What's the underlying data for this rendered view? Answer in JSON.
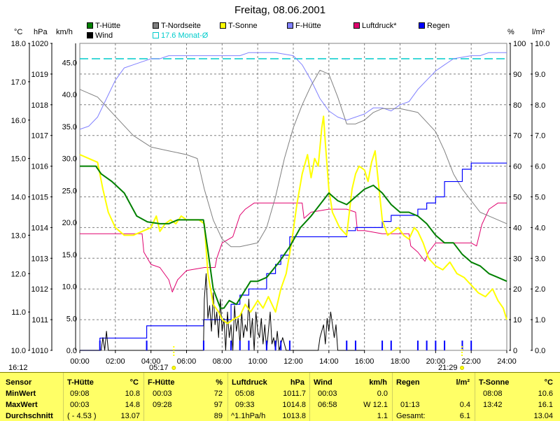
{
  "title": "Freitag, 08.06.2001",
  "units": {
    "celsius": "°C",
    "hpa": "hPa",
    "kmh": "km/h",
    "percent": "%",
    "rain": "l/m²"
  },
  "legend": [
    {
      "label": "T-Hütte",
      "color": "#008000"
    },
    {
      "label": "Wind",
      "color": "#000000"
    },
    {
      "label": "T-Nordseite",
      "color": "#808080"
    },
    {
      "label": "17.6 Monat-Ø",
      "color": "#00cccc"
    },
    {
      "label": "T-Sonne",
      "color": "#ffff00"
    },
    {
      "label": "F-Hütte",
      "color": "#8080ff"
    },
    {
      "label": "Luftdruck*",
      "color": "#e0006e"
    },
    {
      "label": "Regen",
      "color": "#0000ff"
    }
  ],
  "axes": {
    "temp": [
      "18.0",
      "17.0",
      "16.0",
      "15.0",
      "14.0",
      "13.0",
      "12.0",
      "11.0",
      "10.0"
    ],
    "pressure": [
      "1020",
      "1019",
      "1018",
      "1017",
      "1016",
      "1015",
      "1014",
      "1013",
      "1012",
      "1011",
      "1010"
    ],
    "wind": [
      "45.0",
      "40.0",
      "35.0",
      "30.0",
      "25.0",
      "20.0",
      "15.0",
      "10.0",
      "5.0",
      "0.0"
    ],
    "humidity": [
      "100",
      "90",
      "80",
      "70",
      "60",
      "50",
      "40",
      "30",
      "20",
      "10",
      "0"
    ],
    "rain": [
      "10.0",
      "9.0",
      "8.0",
      "7.0",
      "6.0",
      "5.0",
      "4.0",
      "3.0",
      "2.0",
      "1.0",
      "0.0"
    ],
    "time": [
      "00:00",
      "02:00",
      "04:00",
      "06:00",
      "08:00",
      "10:00",
      "12:00",
      "14:00",
      "16:00",
      "18:00",
      "20:00",
      "22:00",
      "24:00"
    ]
  },
  "markers": {
    "timestamp": "16:12",
    "sunrise": "05:17",
    "sunset": "21:29"
  },
  "chart_data": {
    "type": "line",
    "title": "Freitag, 08.06.2001",
    "x_unit": "hours",
    "xlim": [
      0,
      24
    ],
    "month_avg": 17.6,
    "series": [
      {
        "name": "T-Hütte",
        "axis": "°C",
        "color": "#008000",
        "x": [
          0,
          0.9,
          1.2,
          1.8,
          2.5,
          3.2,
          3.8,
          4.5,
          5.0,
          5.5,
          6.0,
          6.6,
          6.95,
          7.2,
          7.5,
          7.9,
          8.1,
          8.4,
          8.8,
          9.2,
          9.6,
          10.0,
          10.5,
          11.2,
          11.8,
          12.4,
          13.0,
          13.5,
          14.0,
          14.5,
          15.0,
          15.5,
          16.0,
          16.5,
          17.0,
          17.5,
          18.0,
          18.5,
          19.0,
          19.5,
          20.0,
          20.5,
          21.0,
          21.5,
          22.0,
          22.5,
          23.0,
          23.5,
          24.0
        ],
        "y": [
          14.8,
          14.8,
          14.6,
          14.4,
          14.1,
          13.5,
          13.35,
          13.3,
          13.3,
          13.4,
          13.4,
          13.4,
          13.4,
          12.6,
          11.6,
          11.1,
          11.1,
          11.3,
          11.2,
          11.5,
          11.8,
          11.8,
          11.9,
          12.3,
          12.7,
          13.2,
          13.5,
          13.8,
          14.1,
          13.9,
          13.8,
          14.0,
          14.2,
          14.3,
          14.1,
          13.8,
          13.6,
          13.6,
          13.5,
          13.3,
          13.0,
          12.8,
          12.8,
          12.5,
          12.3,
          12.2,
          12.0,
          11.9,
          11.8
        ]
      },
      {
        "name": "T-Nordseite",
        "axis": "°C",
        "color": "#808080",
        "x": [
          0,
          1.0,
          2.0,
          3.0,
          4.0,
          5.0,
          6.0,
          6.6,
          7.0,
          7.5,
          8.0,
          8.5,
          9.0,
          10.0,
          10.5,
          11.0,
          11.5,
          12.0,
          12.5,
          13.0,
          13.5,
          14.0,
          14.5,
          15.0,
          15.5,
          16.0,
          16.5,
          17.0,
          18.0,
          19.0,
          20.0,
          20.5,
          21.0,
          21.5,
          22.0,
          22.5,
          23.0,
          24.0
        ],
        "y": [
          16.8,
          16.6,
          16.1,
          15.6,
          15.3,
          15.2,
          15.1,
          15.0,
          14.2,
          13.4,
          12.9,
          12.7,
          12.7,
          12.8,
          13.2,
          14.0,
          15.0,
          15.8,
          16.4,
          16.9,
          17.3,
          17.2,
          16.6,
          15.9,
          15.9,
          16.0,
          16.2,
          16.3,
          16.3,
          16.2,
          15.7,
          15.2,
          14.6,
          14.2,
          13.9,
          13.6,
          13.5,
          13.3
        ]
      },
      {
        "name": "T-Sonne",
        "axis": "°C",
        "color": "#ffff00",
        "x": [
          0,
          0.5,
          1.0,
          1.3,
          1.6,
          2.0,
          2.5,
          3.0,
          3.5,
          4.0,
          4.3,
          4.5,
          4.8,
          5.1,
          5.4,
          5.7,
          6.0,
          6.3,
          6.7,
          7.0,
          7.2,
          7.5,
          7.8,
          8.0,
          8.3,
          8.6,
          9.0,
          9.3,
          9.6,
          10.0,
          10.3,
          10.6,
          11.0,
          11.3,
          11.6,
          11.9,
          12.2,
          12.5,
          12.8,
          13.0,
          13.2,
          13.4,
          13.6,
          13.7,
          13.8,
          14.0,
          14.2,
          14.4,
          14.6,
          14.8,
          15.0,
          15.3,
          15.5,
          15.7,
          16.0,
          16.2,
          16.4,
          16.6,
          16.8,
          17.0,
          17.3,
          17.6,
          17.9,
          18.2,
          18.5,
          18.8,
          19.0,
          19.3,
          19.6,
          20.0,
          20.4,
          20.8,
          21.2,
          21.6,
          22.0,
          22.4,
          22.8,
          23.2,
          23.5,
          23.8,
          24.0
        ],
        "y": [
          15.1,
          15.0,
          14.9,
          14.2,
          13.6,
          13.2,
          13.0,
          13.0,
          13.1,
          13.2,
          13.5,
          13.1,
          13.3,
          13.4,
          13.3,
          13.5,
          13.4,
          13.4,
          13.4,
          13.3,
          12.0,
          11.2,
          11.0,
          10.8,
          10.7,
          10.8,
          10.9,
          11.2,
          11.0,
          11.3,
          11.1,
          11.4,
          11.0,
          11.6,
          12.0,
          12.8,
          13.8,
          14.6,
          15.1,
          14.5,
          15.0,
          14.8,
          15.8,
          16.1,
          15.4,
          14.2,
          13.6,
          13.4,
          13.2,
          13.1,
          13.0,
          14.2,
          14.6,
          14.8,
          14.7,
          14.4,
          14.9,
          15.2,
          14.3,
          13.4,
          13.0,
          13.1,
          13.2,
          13.0,
          12.9,
          13.2,
          13.1,
          12.8,
          12.4,
          12.2,
          12.1,
          12.3,
          12.0,
          11.9,
          11.7,
          11.5,
          11.4,
          11.6,
          11.3,
          11.1,
          10.8
        ]
      },
      {
        "name": "F-Hütte",
        "axis": "%",
        "color": "#8080ff",
        "x": [
          0,
          0.5,
          1.0,
          1.5,
          2.0,
          2.5,
          3.0,
          3.5,
          4.0,
          4.5,
          5.0,
          6.0,
          7.0,
          8.0,
          8.5,
          9.0,
          9.5,
          10.0,
          11.0,
          12.0,
          12.5,
          13.0,
          13.5,
          14.0,
          14.5,
          15.0,
          15.5,
          16.0,
          16.5,
          17.0,
          17.5,
          18.0,
          18.5,
          19.0,
          19.5,
          20.0,
          20.5,
          21.0,
          22.0,
          22.5,
          23.0,
          24.0
        ],
        "y": [
          72,
          73,
          76,
          82,
          88,
          92,
          93,
          94,
          95,
          95,
          96,
          96,
          96,
          96,
          96,
          96,
          97,
          97,
          97,
          96,
          93,
          88,
          82,
          78,
          76,
          75,
          76,
          77,
          79,
          79,
          78,
          80,
          81,
          85,
          88,
          91,
          93,
          95,
          96,
          96,
          97,
          97
        ]
      },
      {
        "name": "Luftdruck*",
        "axis": "hPa",
        "color": "#e0006e",
        "x": [
          0,
          2.0,
          3.5,
          3.6,
          4.0,
          4.5,
          5.0,
          5.2,
          5.5,
          6.0,
          7.0,
          7.6,
          7.7,
          8.0,
          8.6,
          9.0,
          9.3,
          9.8,
          10.0,
          12.0,
          12.5,
          12.6,
          13.0,
          14.0,
          15.0,
          15.5,
          15.6,
          16.0,
          17.0,
          18.0,
          18.5,
          18.6,
          19.0,
          19.4,
          19.6,
          20.0,
          22.0,
          22.3,
          22.6,
          23.0,
          23.5,
          24.0
        ],
        "y": [
          1013.8,
          1013.8,
          1013.8,
          1013.2,
          1012.8,
          1012.7,
          1012.3,
          1011.9,
          1012.3,
          1012.6,
          1012.7,
          1012.7,
          1013.0,
          1013.5,
          1013.7,
          1014.4,
          1014.6,
          1014.8,
          1014.8,
          1014.8,
          1014.8,
          1014.3,
          1014.5,
          1014.6,
          1014.6,
          1014.5,
          1013.9,
          1013.9,
          1013.8,
          1013.8,
          1013.8,
          1013.4,
          1013.2,
          1012.9,
          1013.2,
          1013.5,
          1013.5,
          1013.4,
          1014.1,
          1014.6,
          1014.8,
          1014.8
        ]
      },
      {
        "name": "Regen",
        "axis": "l/m²",
        "color": "#0000ff",
        "x": [
          0,
          1.13,
          3.75,
          3.76,
          6.95,
          6.96,
          8.5,
          9.0,
          9.5,
          10.5,
          11.0,
          11.3,
          11.8,
          14.0,
          15.0,
          15.5,
          16.0,
          17.0,
          17.5,
          18.0,
          19.0,
          19.5,
          20.0,
          20.5,
          21.5,
          22.0,
          22.5,
          24.0
        ],
        "y": [
          0.0,
          0.4,
          0.4,
          0.8,
          0.8,
          1.0,
          1.5,
          1.8,
          2.0,
          2.5,
          2.8,
          3.1,
          3.7,
          3.7,
          3.9,
          4.0,
          4.0,
          4.2,
          4.4,
          4.4,
          4.6,
          4.8,
          5.0,
          5.5,
          5.9,
          6.1,
          6.1,
          6.1
        ]
      },
      {
        "name": "Wind",
        "axis": "km/h",
        "color": "#000000",
        "x": [
          0,
          1.2,
          1.3,
          1.4,
          1.5,
          1.6,
          6.95,
          7.0,
          7.1,
          7.2,
          7.3,
          7.4,
          7.5,
          7.6,
          7.7,
          7.8,
          7.9,
          8.0,
          8.1,
          8.2,
          8.3,
          8.4,
          8.5,
          8.6,
          8.7,
          8.8,
          8.9,
          9.0,
          9.1,
          9.2,
          9.3,
          9.4,
          9.5,
          9.6,
          9.7,
          9.8,
          9.9,
          10.0,
          10.1,
          10.2,
          10.3,
          10.4,
          10.5,
          10.6,
          10.7,
          10.8,
          10.9,
          11.0,
          11.1,
          11.2,
          11.4,
          11.6,
          12.0,
          13.4,
          13.5,
          13.7,
          13.8,
          13.9,
          14.0,
          14.1,
          14.3,
          14.4,
          14.5,
          16.0
        ],
        "y": [
          0,
          0,
          2,
          0,
          3,
          0,
          0,
          8,
          12,
          5,
          7,
          3,
          9,
          4,
          6,
          2,
          8,
          3,
          5,
          0,
          6,
          2,
          4,
          0,
          7,
          3,
          5,
          1,
          6,
          2,
          4,
          3,
          8,
          2,
          5,
          0,
          6,
          3,
          2,
          5,
          1,
          4,
          0,
          3,
          6,
          1,
          2,
          0,
          3,
          0,
          2,
          0,
          0,
          0,
          2,
          4,
          1,
          5,
          3,
          6,
          2,
          4,
          0,
          0
        ]
      }
    ]
  },
  "stats": {
    "headers": [
      {
        "name": "Sensor",
        "unit": ""
      },
      {
        "name": "T-Hütte",
        "unit": "°C"
      },
      {
        "name": "F-Hütte",
        "unit": "%"
      },
      {
        "name": "Luftdruck",
        "unit": "hPa"
      },
      {
        "name": "Wind",
        "unit": "km/h"
      },
      {
        "name": "Regen",
        "unit": "l/m²"
      },
      {
        "name": "T-Sonne",
        "unit": "°C"
      }
    ],
    "rows": [
      {
        "label": "MinWert",
        "cells": [
          [
            "09:08",
            "10.8"
          ],
          [
            "00:03",
            "72"
          ],
          [
            "05:08",
            "1011.7"
          ],
          [
            "00:03",
            "0.0"
          ],
          [
            "",
            ""
          ],
          [
            "08:08",
            "10.6"
          ]
        ]
      },
      {
        "label": "MaxWert",
        "cells": [
          [
            "00:03",
            "14.8"
          ],
          [
            "09:28",
            "97"
          ],
          [
            "09:33",
            "1014.8"
          ],
          [
            "06:58",
            "W 12.1"
          ],
          [
            "01:13",
            "0.4"
          ],
          [
            "13:42",
            "16.1"
          ]
        ]
      },
      {
        "label": "Durchschnitt",
        "cells": [
          [
            "( - 4.53 )",
            "13.07"
          ],
          [
            "",
            "89"
          ],
          [
            "^1.1hPa/h",
            "1013.8"
          ],
          [
            "",
            "1.1"
          ],
          [
            "Gesamt:",
            "6.1"
          ],
          [
            "",
            "13.04"
          ]
        ]
      }
    ]
  }
}
